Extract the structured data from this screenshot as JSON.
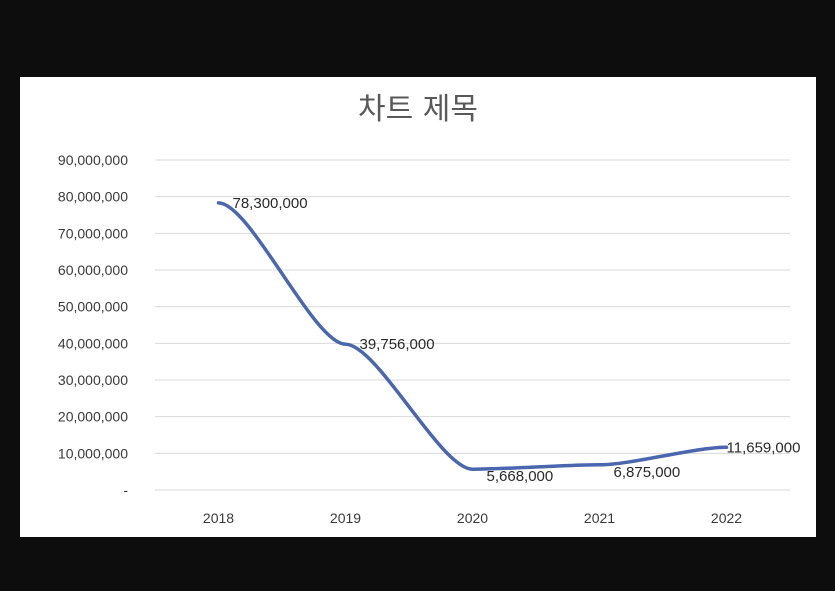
{
  "chart_data": {
    "type": "line",
    "title": "차트 제목",
    "xlabel": "",
    "ylabel": "",
    "categories": [
      "2018",
      "2019",
      "2020",
      "2021",
      "2022"
    ],
    "series": [
      {
        "values": [
          78300000,
          39756000,
          5668000,
          6875000,
          11659000
        ],
        "color": "#4a67ad"
      }
    ],
    "data_labels": [
      "78,300,000",
      "39,756,000",
      "5,668,000",
      "6,875,000",
      "11,659,000"
    ],
    "yticks": [
      {
        "value": 0,
        "label": "-"
      },
      {
        "value": 10000000,
        "label": "10,000,000"
      },
      {
        "value": 20000000,
        "label": "20,000,000"
      },
      {
        "value": 30000000,
        "label": "30,000,000"
      },
      {
        "value": 40000000,
        "label": "40,000,000"
      },
      {
        "value": 50000000,
        "label": "50,000,000"
      },
      {
        "value": 60000000,
        "label": "60,000,000"
      },
      {
        "value": 70000000,
        "label": "70,000,000"
      },
      {
        "value": 80000000,
        "label": "80,000,000"
      },
      {
        "value": 90000000,
        "label": "90,000,000"
      }
    ],
    "ylim": [
      0,
      90000000
    ],
    "grid": true,
    "legend": "none"
  }
}
